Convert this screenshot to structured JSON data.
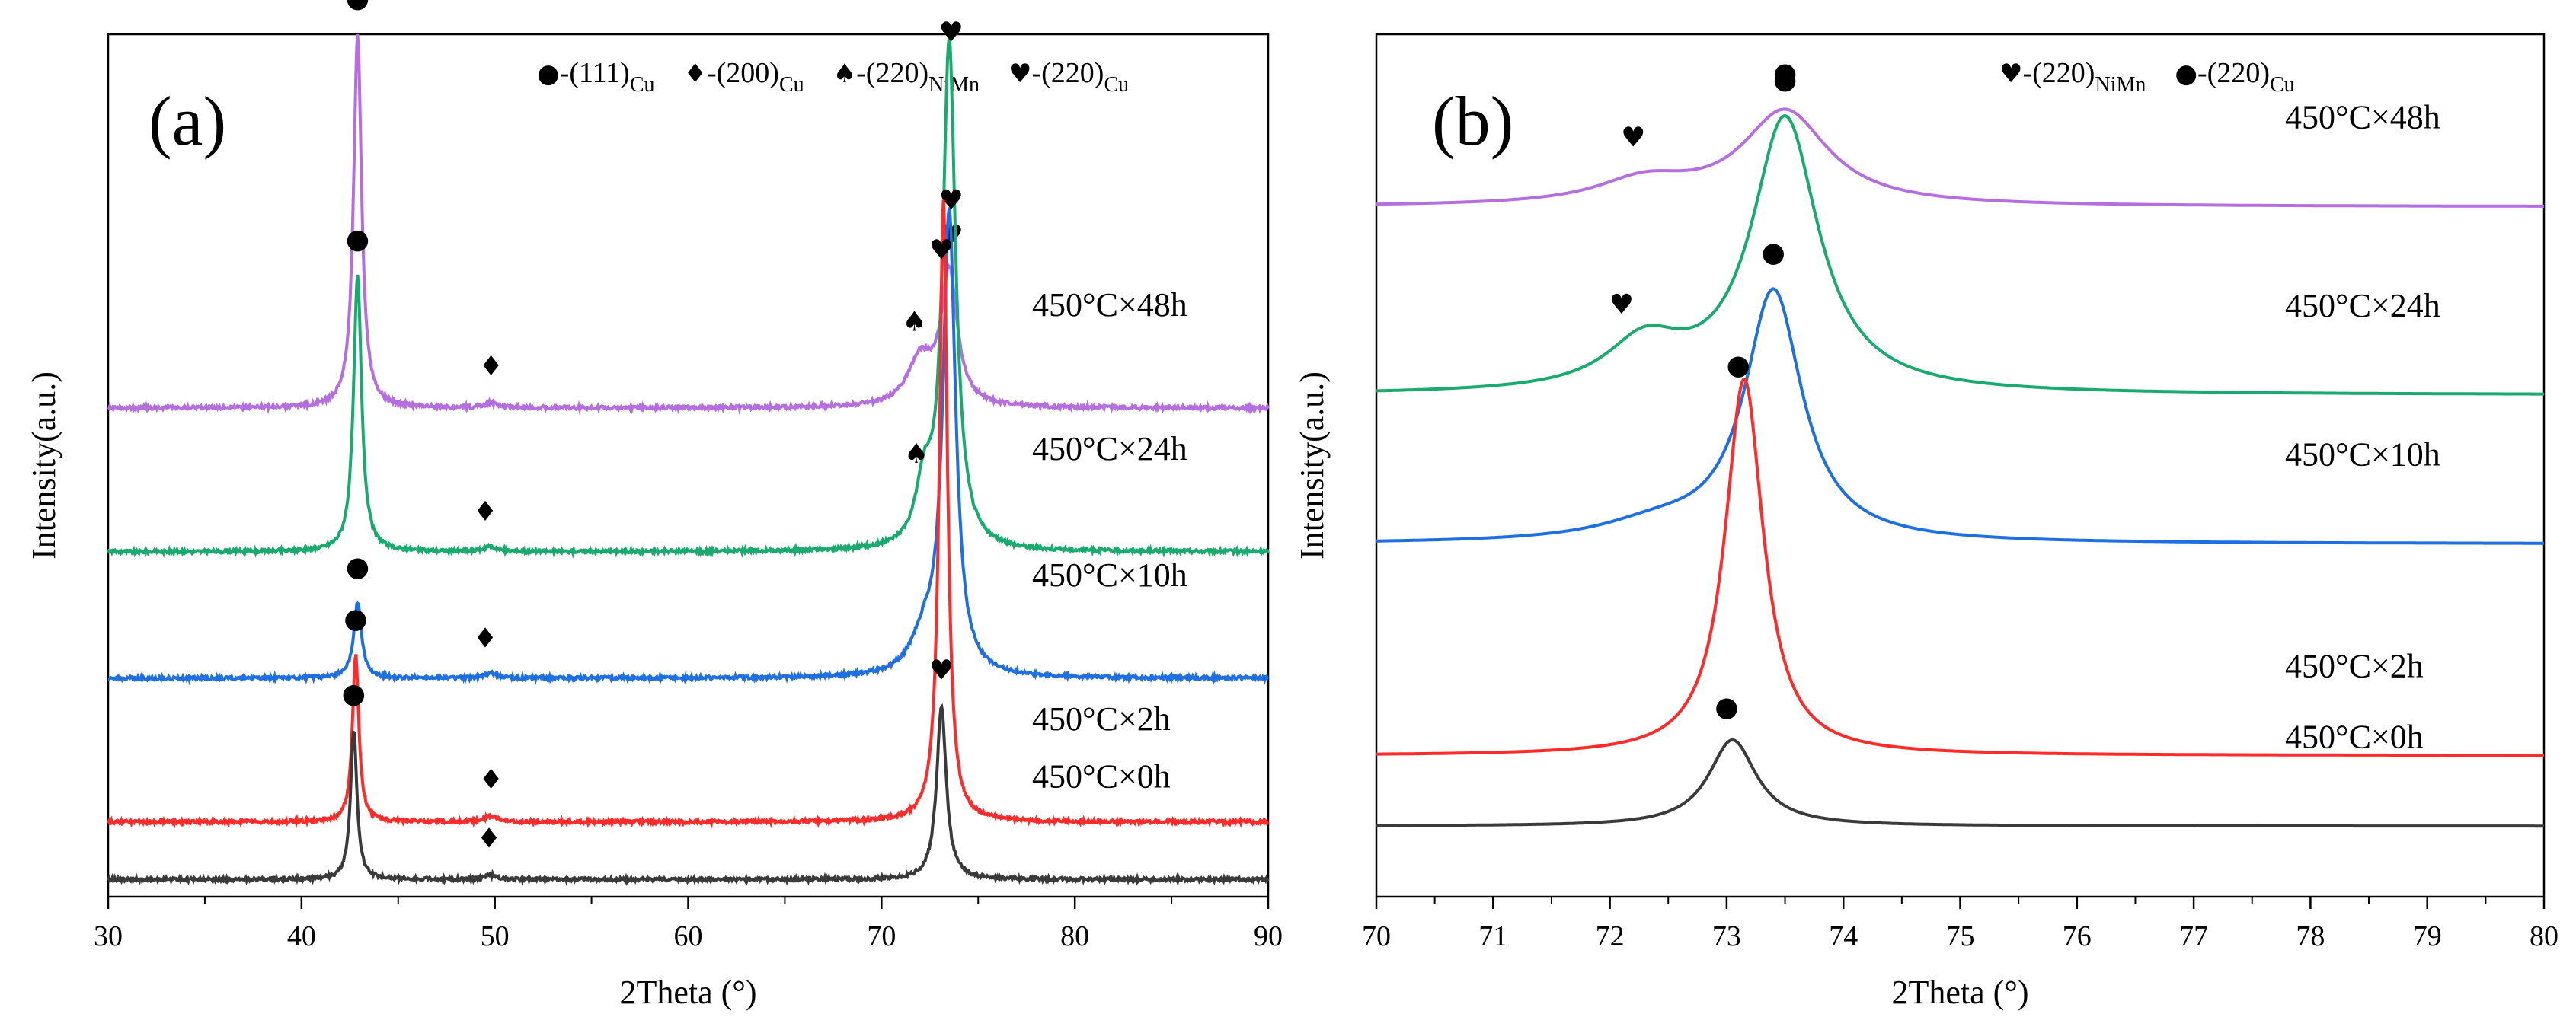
{
  "chart_data": [
    {
      "type": "line",
      "panel_label": "(a)",
      "xlabel": "2Theta (°)",
      "ylabel": "Intensity(a.u.)",
      "xlim": [
        30,
        90
      ],
      "xticks": [
        "30",
        "40",
        "50",
        "60",
        "70",
        "80",
        "90"
      ],
      "legend": [
        {
          "symbol": "●",
          "text": "-(111)",
          "sub": "Cu"
        },
        {
          "symbol": "♦",
          "text": "-(200)",
          "sub": "Cu"
        },
        {
          "symbol": "♠",
          "text": "-(220)",
          "sub": "NiMn"
        },
        {
          "symbol": "♥",
          "text": "-(220)",
          "sub": "Cu"
        }
      ],
      "series": [
        {
          "name": "450°C×48h",
          "color": "#b46ee0",
          "baseline": 8.5,
          "peaks": [
            {
              "x": 42.9,
              "h": 6.5,
              "w": 0.25
            },
            {
              "x": 49.8,
              "h": 0.08,
              "w": 0.4
            },
            {
              "x": 72.0,
              "h": 0.8,
              "w": 0.8
            },
            {
              "x": 73.5,
              "h": 2.3,
              "w": 0.5
            }
          ],
          "markers": [
            {
              "x": 42.9,
              "symbol": "●"
            },
            {
              "x": 49.8,
              "symbol": "♦"
            },
            {
              "x": 71.7,
              "symbol": "♠"
            },
            {
              "x": 73.6,
              "symbol": "♥"
            }
          ]
        },
        {
          "name": "450°C×24h",
          "color": "#1aaa70",
          "baseline": 6.0,
          "peaks": [
            {
              "x": 42.9,
              "h": 4.8,
              "w": 0.25
            },
            {
              "x": 49.8,
              "h": 0.08,
              "w": 0.4
            },
            {
              "x": 72.2,
              "h": 1.0,
              "w": 0.5
            },
            {
              "x": 73.5,
              "h": 8.8,
              "w": 0.4
            }
          ],
          "markers": [
            {
              "x": 42.9,
              "symbol": "●"
            },
            {
              "x": 49.5,
              "symbol": "♦"
            },
            {
              "x": 71.8,
              "symbol": "♠"
            },
            {
              "x": 73.6,
              "symbol": "♥"
            }
          ]
        },
        {
          "name": "450°C×10h",
          "color": "#1f6fe0",
          "baseline": 3.8,
          "peaks": [
            {
              "x": 42.9,
              "h": 1.3,
              "w": 0.25
            },
            {
              "x": 49.8,
              "h": 0.08,
              "w": 0.4
            },
            {
              "x": 72.2,
              "h": 0.6,
              "w": 0.8
            },
            {
              "x": 73.5,
              "h": 8.0,
              "w": 0.4
            }
          ],
          "markers": [
            {
              "x": 42.9,
              "symbol": "●"
            },
            {
              "x": 49.5,
              "symbol": "♦"
            },
            {
              "x": 73.6,
              "symbol": "♥"
            }
          ]
        },
        {
          "name": "450°C×2h",
          "color": "#ff2a2a",
          "baseline": 1.3,
          "peaks": [
            {
              "x": 42.8,
              "h": 2.9,
              "w": 0.2
            },
            {
              "x": 49.8,
              "h": 0.1,
              "w": 0.4
            },
            {
              "x": 73.2,
              "h": 10.8,
              "w": 0.25
            }
          ],
          "markers": [
            {
              "x": 42.8,
              "symbol": "●"
            },
            {
              "x": 49.8,
              "symbol": "♦"
            },
            {
              "x": 73.1,
              "symbol": "♥"
            }
          ]
        },
        {
          "name": "450°C×0h",
          "color": "#3a3a3a",
          "baseline": 0.3,
          "peaks": [
            {
              "x": 42.7,
              "h": 2.6,
              "w": 0.2
            },
            {
              "x": 49.8,
              "h": 0.08,
              "w": 0.4
            },
            {
              "x": 73.1,
              "h": 3.0,
              "w": 0.3
            }
          ],
          "markers": [
            {
              "x": 42.7,
              "symbol": "●"
            },
            {
              "x": 49.7,
              "symbol": "♦"
            },
            {
              "x": 73.1,
              "symbol": "♥"
            }
          ]
        }
      ]
    },
    {
      "type": "line",
      "panel_label": "(b)",
      "xlabel": "2Theta (°)",
      "ylabel": "Intensity(a.u.)",
      "xlim": [
        70,
        80
      ],
      "xticks": [
        "70",
        "71",
        "72",
        "73",
        "74",
        "75",
        "76",
        "77",
        "78",
        "79",
        "80"
      ],
      "legend": [
        {
          "symbol": "♥",
          "text": "-(220)",
          "sub": "NiMn"
        },
        {
          "symbol": "●",
          "text": "-(220)",
          "sub": "Cu"
        }
      ],
      "series": [
        {
          "name": "450°C×48h",
          "color": "#b46ee0",
          "baseline": 8.8,
          "peaks": [
            {
              "x": 72.3,
              "h": 0.3,
              "w": 0.5
            },
            {
              "x": 73.5,
              "h": 1.2,
              "w": 0.45
            }
          ],
          "markers": [
            {
              "x": 72.2,
              "symbol": "♥"
            },
            {
              "x": 73.5,
              "symbol": "●"
            }
          ]
        },
        {
          "name": "450°C×24h",
          "color": "#1aaa70",
          "baseline": 6.4,
          "peaks": [
            {
              "x": 72.3,
              "h": 0.6,
              "w": 0.4
            },
            {
              "x": 73.5,
              "h": 3.5,
              "w": 0.35
            }
          ],
          "markers": [
            {
              "x": 72.1,
              "symbol": "♥"
            },
            {
              "x": 73.5,
              "symbol": "●"
            }
          ]
        },
        {
          "name": "450°C×10h",
          "color": "#1f6fe0",
          "baseline": 4.5,
          "peaks": [
            {
              "x": 72.4,
              "h": 0.2,
              "w": 0.6
            },
            {
              "x": 73.4,
              "h": 3.2,
              "w": 0.3
            }
          ],
          "markers": [
            {
              "x": 73.4,
              "symbol": "●"
            }
          ]
        },
        {
          "name": "450°C×2h",
          "color": "#ff2a2a",
          "baseline": 1.8,
          "peaks": [
            {
              "x": 73.15,
              "h": 4.8,
              "w": 0.2
            }
          ],
          "markers": [
            {
              "x": 73.1,
              "symbol": "●"
            }
          ]
        },
        {
          "name": "450°C×0h",
          "color": "#3a3a3a",
          "baseline": 0.9,
          "peaks": [
            {
              "x": 73.05,
              "h": 1.1,
              "w": 0.25
            }
          ],
          "markers": [
            {
              "x": 73.0,
              "symbol": "●"
            }
          ]
        }
      ]
    }
  ]
}
